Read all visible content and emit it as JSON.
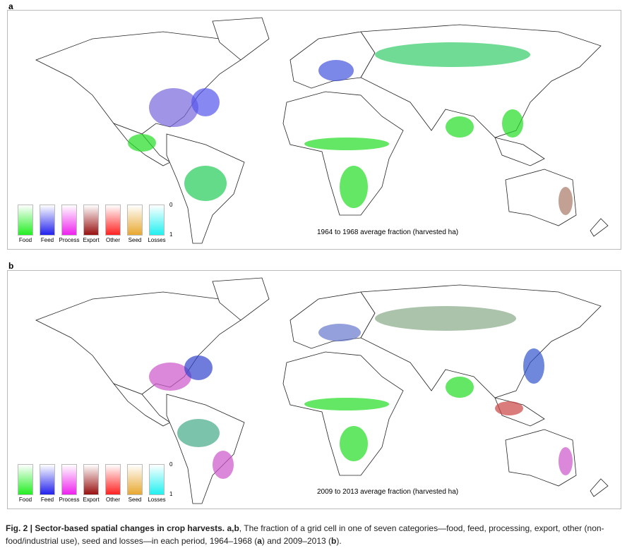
{
  "panels": [
    {
      "label": "a",
      "title": "1964 to 1968 average fraction (harvested ha)"
    },
    {
      "label": "b",
      "title": "2009 to 2013 average fraction (harvested ha)"
    }
  ],
  "legend": {
    "scale_min": "0",
    "scale_max": "1",
    "categories": [
      {
        "label": "Food",
        "color": "#22ee22"
      },
      {
        "label": "Feed",
        "color": "#2222ee"
      },
      {
        "label": "Process",
        "color": "#ee22ee"
      },
      {
        "label": "Export",
        "color": "#991111"
      },
      {
        "label": "Other",
        "color": "#ff2222"
      },
      {
        "label": "Seed",
        "color": "#e8a830"
      },
      {
        "label": "Losses",
        "color": "#22f0f0"
      }
    ]
  },
  "caption": {
    "fig": "Fig. 2 | Sector-based spatial changes in crop harvests.",
    "panels": " a,b",
    "text1": ", The fraction of a grid cell in one of seven categories—food, feed, processing, export, other (non-food/industrial use), seed and losses—in each period, 1964–1968 (",
    "a": "a",
    "text2": ") and 2009–2013 (",
    "b": "b",
    "text3": ")."
  }
}
